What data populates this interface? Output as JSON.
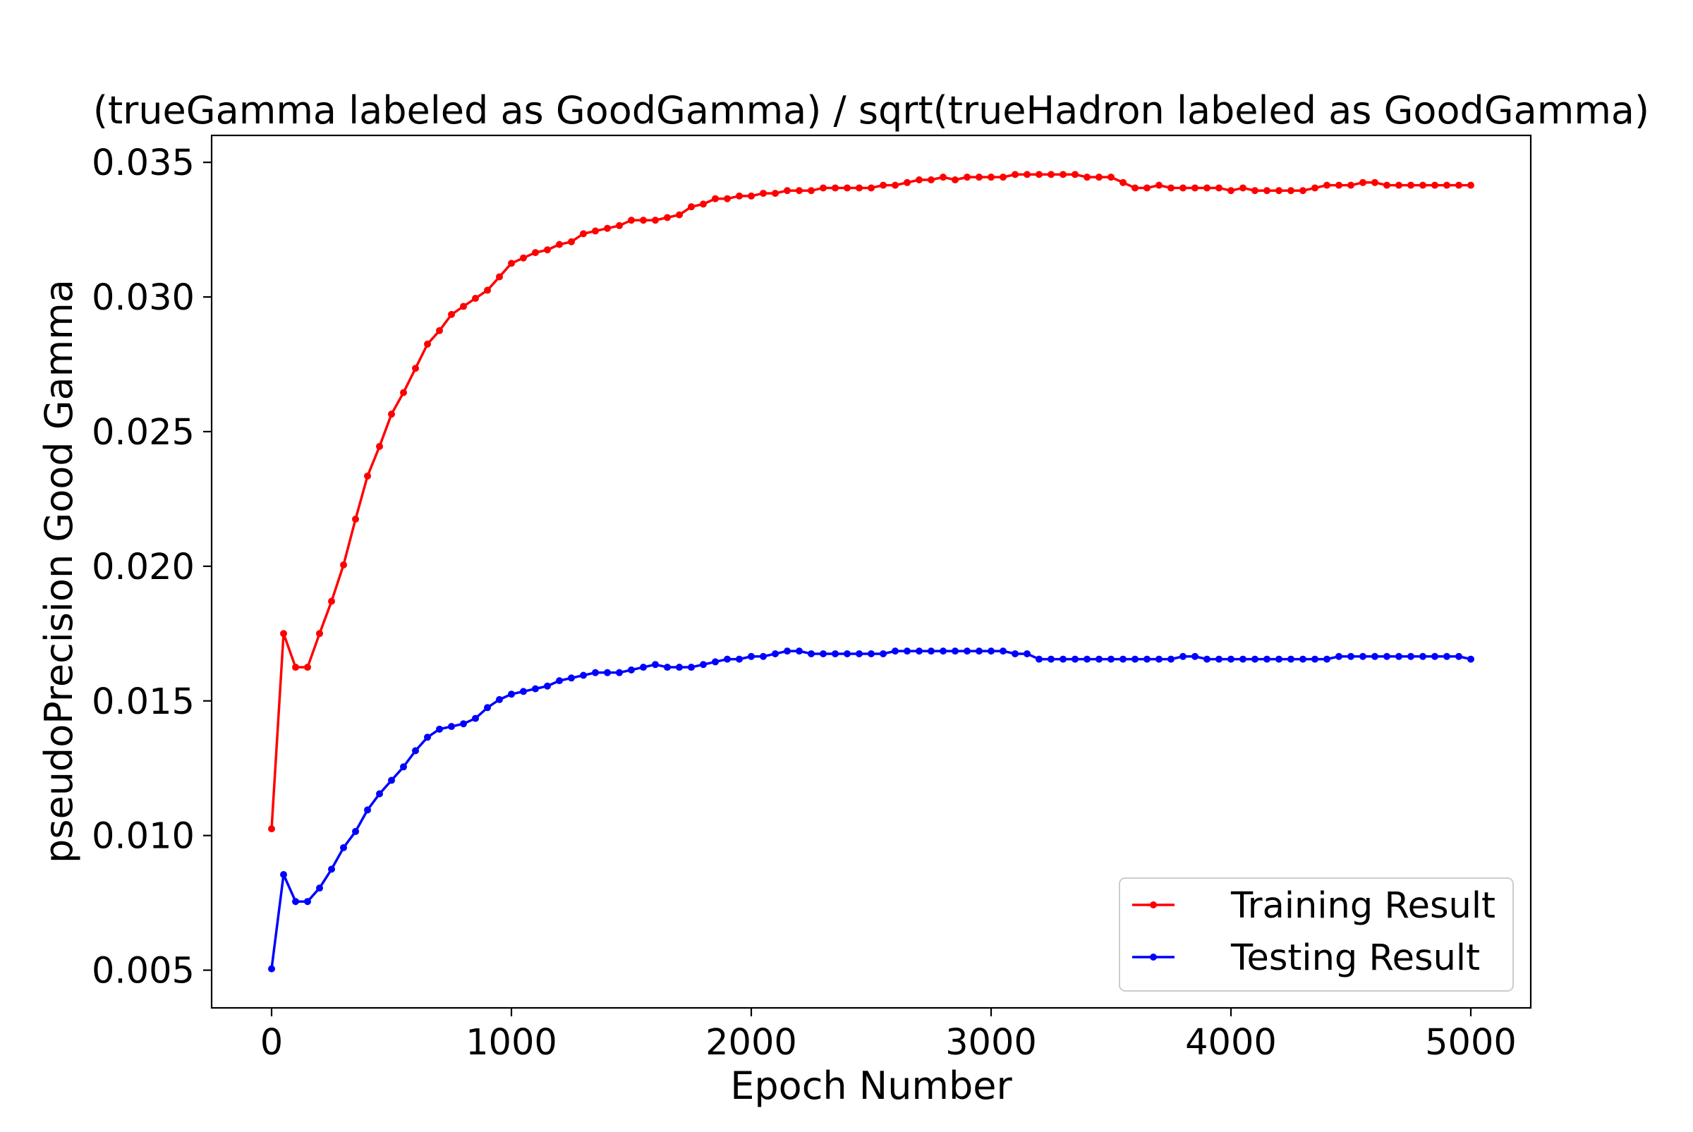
{
  "chart_data": {
    "type": "line",
    "title": "(trueGamma labeled as GoodGamma) / sqrt(trueHadron labeled as GoodGamma)",
    "xlabel": "Epoch Number",
    "ylabel": "pseudoPrecision Good Gamma",
    "xlim": [
      -250,
      5250
    ],
    "ylim": [
      0.0036,
      0.036
    ],
    "xticks": [
      0,
      1000,
      2000,
      3000,
      4000,
      5000
    ],
    "xtick_labels": [
      "0",
      "1000",
      "2000",
      "3000",
      "4000",
      "5000"
    ],
    "yticks": [
      0.005,
      0.01,
      0.015,
      0.02,
      0.025,
      0.03,
      0.035
    ],
    "ytick_labels": [
      "0.005",
      "0.010",
      "0.015",
      "0.020",
      "0.025",
      "0.030",
      "0.035"
    ],
    "grid": false,
    "legend_position": "lower-right",
    "x": [
      0,
      50,
      100,
      150,
      200,
      250,
      300,
      350,
      400,
      450,
      500,
      550,
      600,
      650,
      700,
      750,
      800,
      850,
      900,
      950,
      1000,
      1050,
      1100,
      1150,
      1200,
      1250,
      1300,
      1350,
      1400,
      1450,
      1500,
      1550,
      1600,
      1650,
      1700,
      1750,
      1800,
      1850,
      1900,
      1950,
      2000,
      2050,
      2100,
      2150,
      2200,
      2250,
      2300,
      2350,
      2400,
      2450,
      2500,
      2550,
      2600,
      2650,
      2700,
      2750,
      2800,
      2850,
      2900,
      2950,
      3000,
      3050,
      3100,
      3150,
      3200,
      3250,
      3300,
      3350,
      3400,
      3450,
      3500,
      3550,
      3600,
      3650,
      3700,
      3750,
      3800,
      3850,
      3900,
      3950,
      4000,
      4050,
      4100,
      4150,
      4200,
      4250,
      4300,
      4350,
      4400,
      4450,
      4500,
      4550,
      4600,
      4650,
      4700,
      4750,
      4800,
      4850,
      4900,
      4950,
      5000
    ],
    "series": [
      {
        "name": "Training Result",
        "color": "#ff0000",
        "values": [
          0.01025,
          0.0175,
          0.01625,
          0.01625,
          0.0175,
          0.0187,
          0.02005,
          0.02175,
          0.02335,
          0.02445,
          0.02565,
          0.02645,
          0.02735,
          0.02825,
          0.02875,
          0.02935,
          0.02965,
          0.02995,
          0.03025,
          0.03075,
          0.03125,
          0.03145,
          0.03165,
          0.03175,
          0.03195,
          0.03205,
          0.03235,
          0.03245,
          0.03255,
          0.03265,
          0.03285,
          0.03285,
          0.03285,
          0.03295,
          0.03305,
          0.03335,
          0.03345,
          0.03365,
          0.03365,
          0.03375,
          0.03375,
          0.03385,
          0.03385,
          0.03395,
          0.03395,
          0.03395,
          0.03405,
          0.03405,
          0.03405,
          0.03405,
          0.03405,
          0.03415,
          0.03415,
          0.03425,
          0.03435,
          0.03435,
          0.03445,
          0.03435,
          0.03445,
          0.03445,
          0.03445,
          0.03445,
          0.03455,
          0.03455,
          0.03455,
          0.03455,
          0.03455,
          0.03455,
          0.03445,
          0.03445,
          0.03445,
          0.03425,
          0.03405,
          0.03405,
          0.03415,
          0.03405,
          0.03405,
          0.03405,
          0.03405,
          0.03405,
          0.03395,
          0.03405,
          0.03395,
          0.03395,
          0.03395,
          0.03395,
          0.03395,
          0.03405,
          0.03415,
          0.03415,
          0.03415,
          0.03425,
          0.03425,
          0.03415,
          0.03415,
          0.03415,
          0.03415,
          0.03415,
          0.03415,
          0.03415,
          0.03415
        ]
      },
      {
        "name": "Testing Result",
        "color": "#0000ff",
        "values": [
          0.00505,
          0.00855,
          0.00755,
          0.00755,
          0.00805,
          0.00875,
          0.00955,
          0.01015,
          0.01095,
          0.01155,
          0.01205,
          0.01255,
          0.01315,
          0.01365,
          0.01395,
          0.01405,
          0.01415,
          0.01435,
          0.01475,
          0.01505,
          0.01525,
          0.01535,
          0.01545,
          0.01555,
          0.01575,
          0.01585,
          0.01595,
          0.01605,
          0.01605,
          0.01605,
          0.01615,
          0.01625,
          0.01635,
          0.01625,
          0.01625,
          0.01625,
          0.01635,
          0.01645,
          0.01655,
          0.01655,
          0.01665,
          0.01665,
          0.01675,
          0.01685,
          0.01685,
          0.01675,
          0.01675,
          0.01675,
          0.01675,
          0.01675,
          0.01675,
          0.01675,
          0.01685,
          0.01685,
          0.01685,
          0.01685,
          0.01685,
          0.01685,
          0.01685,
          0.01685,
          0.01685,
          0.01685,
          0.01675,
          0.01675,
          0.01655,
          0.01655,
          0.01655,
          0.01655,
          0.01655,
          0.01655,
          0.01655,
          0.01655,
          0.01655,
          0.01655,
          0.01655,
          0.01655,
          0.01665,
          0.01665,
          0.01655,
          0.01655,
          0.01655,
          0.01655,
          0.01655,
          0.01655,
          0.01655,
          0.01655,
          0.01655,
          0.01655,
          0.01655,
          0.01665,
          0.01665,
          0.01665,
          0.01665,
          0.01665,
          0.01665,
          0.01665,
          0.01665,
          0.01665,
          0.01665,
          0.01665,
          0.01655
        ]
      }
    ]
  }
}
